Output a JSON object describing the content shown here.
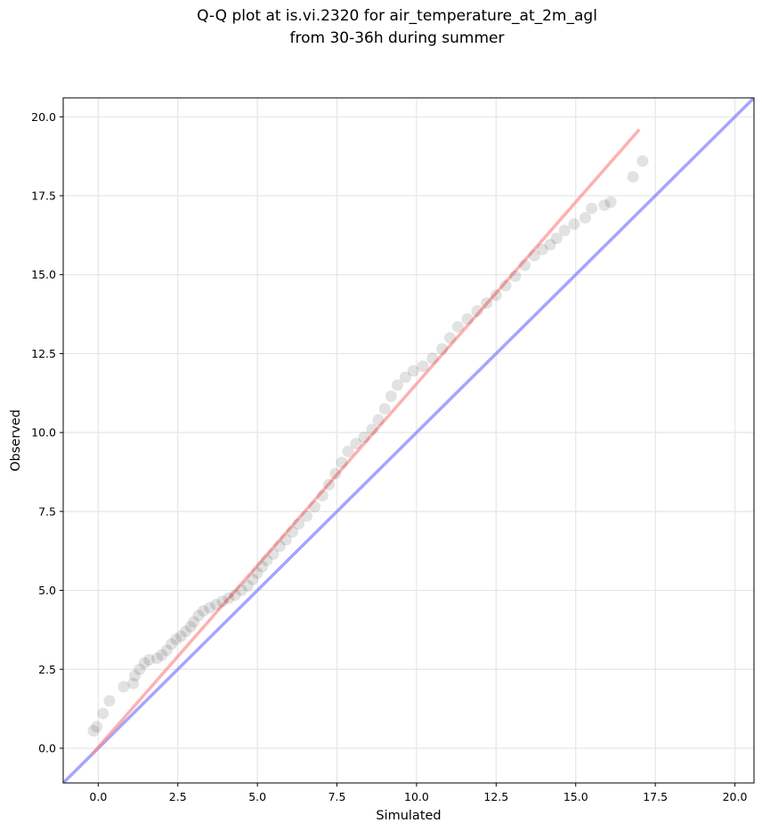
{
  "chart_data": {
    "type": "scatter",
    "title": "Q-Q plot at is.vi.2320 for air_temperature_at_2m_agl",
    "subtitle": "from 30-36h during summer",
    "xlabel": "Simulated",
    "ylabel": "Observed",
    "xlim": [
      -1.1,
      20.6
    ],
    "ylim": [
      -1.1,
      20.6
    ],
    "xticks": [
      0.0,
      2.5,
      5.0,
      7.5,
      10.0,
      12.5,
      15.0,
      17.5,
      20.0
    ],
    "yticks": [
      0.0,
      2.5,
      5.0,
      7.5,
      10.0,
      12.5,
      15.0,
      17.5,
      20.0
    ],
    "tick_labels": [
      "0.0",
      "2.5",
      "5.0",
      "7.5",
      "10.0",
      "12.5",
      "15.0",
      "17.5",
      "20.0"
    ],
    "grid": true,
    "lines": [
      {
        "role": "identity",
        "color": "#7b7bff",
        "x": [
          -1.1,
          20.6
        ],
        "y": [
          -1.1,
          20.6
        ]
      },
      {
        "role": "fit",
        "color": "#ff8a8a",
        "x": [
          -0.2,
          17.0
        ],
        "y": [
          -0.2,
          19.6
        ]
      }
    ],
    "quantiles": [
      [
        -0.15,
        0.55
      ],
      [
        -0.05,
        0.68
      ],
      [
        0.15,
        1.1
      ],
      [
        0.35,
        1.5
      ],
      [
        0.8,
        1.95
      ],
      [
        1.1,
        2.05
      ],
      [
        1.15,
        2.3
      ],
      [
        1.3,
        2.5
      ],
      [
        1.45,
        2.7
      ],
      [
        1.6,
        2.8
      ],
      [
        1.85,
        2.85
      ],
      [
        2.0,
        2.95
      ],
      [
        2.15,
        3.1
      ],
      [
        2.3,
        3.3
      ],
      [
        2.45,
        3.45
      ],
      [
        2.6,
        3.55
      ],
      [
        2.75,
        3.7
      ],
      [
        2.9,
        3.85
      ],
      [
        3.0,
        4.0
      ],
      [
        3.15,
        4.2
      ],
      [
        3.3,
        4.35
      ],
      [
        3.5,
        4.45
      ],
      [
        3.7,
        4.55
      ],
      [
        3.9,
        4.65
      ],
      [
        4.1,
        4.75
      ],
      [
        4.3,
        4.85
      ],
      [
        4.5,
        5.0
      ],
      [
        4.7,
        5.15
      ],
      [
        4.85,
        5.35
      ],
      [
        5.0,
        5.55
      ],
      [
        5.15,
        5.75
      ],
      [
        5.3,
        5.95
      ],
      [
        5.5,
        6.15
      ],
      [
        5.7,
        6.4
      ],
      [
        5.9,
        6.6
      ],
      [
        6.1,
        6.85
      ],
      [
        6.3,
        7.1
      ],
      [
        6.55,
        7.35
      ],
      [
        6.8,
        7.65
      ],
      [
        7.05,
        8.0
      ],
      [
        7.25,
        8.35
      ],
      [
        7.45,
        8.7
      ],
      [
        7.65,
        9.05
      ],
      [
        7.85,
        9.4
      ],
      [
        8.1,
        9.65
      ],
      [
        8.35,
        9.85
      ],
      [
        8.6,
        10.1
      ],
      [
        8.8,
        10.4
      ],
      [
        9.0,
        10.75
      ],
      [
        9.2,
        11.15
      ],
      [
        9.4,
        11.5
      ],
      [
        9.65,
        11.75
      ],
      [
        9.9,
        11.95
      ],
      [
        10.2,
        12.1
      ],
      [
        10.5,
        12.35
      ],
      [
        10.8,
        12.65
      ],
      [
        11.05,
        13.0
      ],
      [
        11.3,
        13.35
      ],
      [
        11.6,
        13.6
      ],
      [
        11.9,
        13.85
      ],
      [
        12.2,
        14.1
      ],
      [
        12.5,
        14.35
      ],
      [
        12.8,
        14.65
      ],
      [
        13.1,
        14.95
      ],
      [
        13.4,
        15.3
      ],
      [
        13.7,
        15.6
      ],
      [
        13.95,
        15.8
      ],
      [
        14.2,
        15.95
      ],
      [
        14.4,
        16.15
      ],
      [
        14.65,
        16.4
      ],
      [
        14.95,
        16.6
      ],
      [
        15.3,
        16.8
      ],
      [
        15.5,
        17.1
      ],
      [
        15.9,
        17.2
      ],
      [
        16.1,
        17.3
      ],
      [
        16.8,
        18.1
      ],
      [
        17.1,
        18.6
      ]
    ]
  }
}
